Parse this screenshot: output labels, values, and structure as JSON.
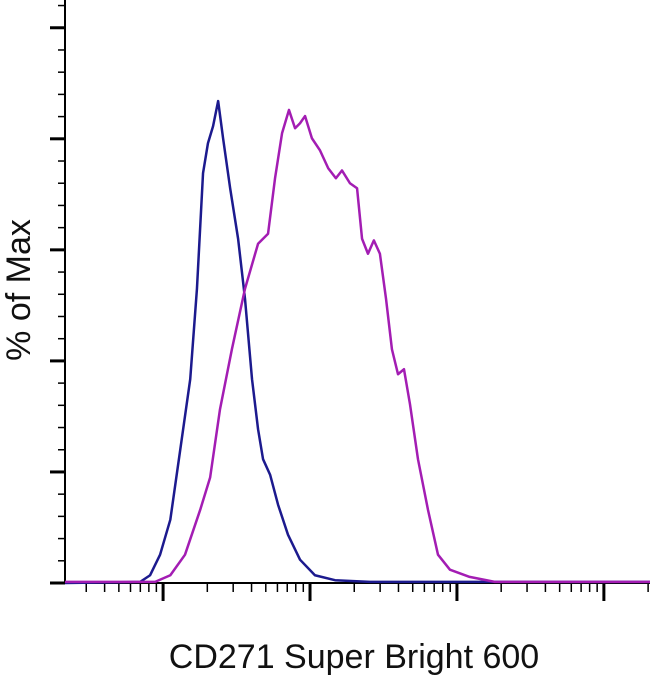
{
  "chart_data": {
    "type": "line",
    "xlabel": "CD271 Super Bright 600",
    "ylabel": "% of Max",
    "xscale": "log",
    "xlim": [
      21.5,
      206000
    ],
    "xticks": [
      30,
      40,
      50,
      60,
      70,
      80,
      90,
      100,
      200,
      300,
      400,
      500,
      600,
      700,
      800,
      900,
      1000,
      2000,
      3000,
      4000,
      5000,
      6000,
      7000,
      8000,
      9000,
      10000,
      20000,
      30000,
      40000,
      50000,
      60000,
      70000,
      80000,
      90000,
      100000,
      200000
    ],
    "ylim": [
      0,
      105
    ],
    "yticks": [
      0,
      4,
      8,
      12,
      16,
      20,
      24,
      28,
      32,
      36,
      40,
      44,
      48,
      52,
      56,
      60,
      64,
      68,
      72,
      76,
      80,
      84,
      88,
      92,
      96,
      100,
      104
    ],
    "series": [
      {
        "color": "#1c1a8e",
        "x": [
          21.5,
          69.8,
          81.6,
          95.4,
          112,
          131,
          153,
          170,
          187,
          202,
          219,
          237,
          256,
          286,
          324,
          361,
          403,
          443,
          479,
          535,
          606,
          708,
          855,
          1080,
          1480,
          2560,
          206000
        ],
        "values": [
          0,
          0.2,
          1.4,
          5.1,
          11.4,
          24.1,
          36.7,
          53.0,
          73.8,
          79.2,
          82.3,
          86.8,
          80.1,
          71.1,
          62.0,
          51.2,
          36.7,
          27.7,
          22.3,
          19.5,
          14.1,
          8.7,
          4.2,
          1.4,
          0.5,
          0.2,
          0.2
        ]
      },
      {
        "color": "#a31db3",
        "x": [
          21.5,
          88.2,
          112,
          141,
          179,
          209,
          244,
          294,
          361,
          443,
          518,
          578,
          645,
          719,
          791,
          855,
          925,
          1030,
          1170,
          1330,
          1500,
          1650,
          1870,
          2090,
          2260,
          2480,
          2720,
          2990,
          3290,
          3610,
          3970,
          4360,
          4790,
          5430,
          6350,
          7430,
          8960,
          12200,
          18100,
          206000
        ],
        "values": [
          0.2,
          0.2,
          1.4,
          5.1,
          13.2,
          19.0,
          31.3,
          42.1,
          53.0,
          61.1,
          62.9,
          72.9,
          81.0,
          85.2,
          81.9,
          82.8,
          84.1,
          80.1,
          77.9,
          74.7,
          72.9,
          74.3,
          72.0,
          71.1,
          62.0,
          59.3,
          61.7,
          59.3,
          51.2,
          42.1,
          37.6,
          38.5,
          32.2,
          22.3,
          13.2,
          5.1,
          2.4,
          1.1,
          0.2,
          0.2
        ]
      }
    ]
  }
}
